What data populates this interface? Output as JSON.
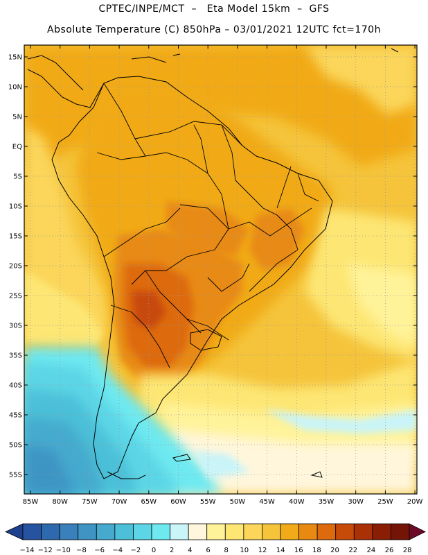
{
  "header": {
    "line1": "CPTEC/INPE/MCT  –   Eta Model 15km  –  GFS",
    "line2": "Absolute Temperature (C) 850hPa – 03/01/2021 12UTC fct=170h"
  },
  "map": {
    "lat_labels": [
      "15N",
      "10N",
      "5N",
      "EQ",
      "5S",
      "10S",
      "15S",
      "20S",
      "25S",
      "30S",
      "35S",
      "40S",
      "45S",
      "50S",
      "55S"
    ],
    "lon_labels": [
      "85W",
      "80W",
      "75W",
      "70W",
      "65W",
      "60W",
      "55W",
      "50W",
      "45W",
      "40W",
      "35W",
      "30W",
      "25W",
      "20W"
    ]
  },
  "colorbar": {
    "labels": [
      "-14",
      "-12",
      "-10",
      "-8",
      "-6",
      "-4",
      "-2",
      "0",
      "2",
      "4",
      "6",
      "8",
      "10",
      "12",
      "14",
      "16",
      "18",
      "20",
      "22",
      "24",
      "26",
      "28"
    ],
    "colors": [
      "#1f3f8f",
      "#25539f",
      "#2e68ad",
      "#3a80bb",
      "#3e95c4",
      "#45aace",
      "#4cc0d8",
      "#5cd6e6",
      "#6ee9f0",
      "#c9f4f8",
      "#fff6dc",
      "#fff39a",
      "#fde673",
      "#fbd65a",
      "#f5c43b",
      "#f1aa18",
      "#e88a12",
      "#dd6a0c",
      "#c84a08",
      "#aa3006",
      "#8a1e05",
      "#741406",
      "#6e0a28"
    ]
  },
  "colors": {
    "background": "#ffffff",
    "coast": "#000000",
    "grid": "#9a9a9a"
  }
}
